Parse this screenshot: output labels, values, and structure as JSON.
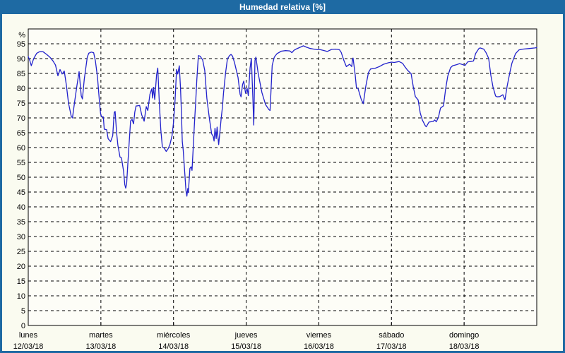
{
  "window": {
    "title": "Humedad relativa [%]"
  },
  "colors": {
    "frame": "#1E6AA3",
    "title_text": "#FFFFFF",
    "background": "#FAFBF0",
    "plot_background": "#FDFDF7",
    "grid": "#000000",
    "axis": "#000000",
    "text": "#000000",
    "line": "#2222CC"
  },
  "chart_data": {
    "type": "line",
    "title": "Humedad relativa [%]",
    "unit_label": "%",
    "ylabel": "%",
    "ylim": [
      0,
      100
    ],
    "yticks": [
      0,
      5,
      10,
      15,
      20,
      25,
      30,
      35,
      40,
      45,
      50,
      55,
      60,
      65,
      70,
      75,
      80,
      85,
      90,
      95
    ],
    "xlim_hours": [
      0,
      168
    ],
    "grid": true,
    "legend": "none",
    "x_axis_days": [
      {
        "name": "lunes",
        "date": "12/03/18"
      },
      {
        "name": "martes",
        "date": "13/03/18"
      },
      {
        "name": "miércoles",
        "date": "14/03/18"
      },
      {
        "name": "jueves",
        "date": "15/03/18"
      },
      {
        "name": "viernes",
        "date": "16/03/18"
      },
      {
        "name": "sábado",
        "date": "17/03/18"
      },
      {
        "name": "domingo",
        "date": "18/03/18"
      }
    ],
    "series": [
      {
        "name": "Humedad relativa",
        "color": "#2222CC",
        "points_hours_pct": [
          [
            0,
            90.7
          ],
          [
            0.5,
            89.4
          ],
          [
            1,
            87.6
          ],
          [
            1.8,
            90
          ],
          [
            2.8,
            91.8
          ],
          [
            3.7,
            92.3
          ],
          [
            4.9,
            92.3
          ],
          [
            6.1,
            91.4
          ],
          [
            7.2,
            90.4
          ],
          [
            8.2,
            89.2
          ],
          [
            9,
            87.8
          ],
          [
            9.8,
            84.2
          ],
          [
            10.5,
            86.3
          ],
          [
            11.2,
            84.8
          ],
          [
            11.9,
            85.8
          ],
          [
            12.6,
            81
          ],
          [
            13.3,
            75
          ],
          [
            14.2,
            70.5
          ],
          [
            14.6,
            70
          ],
          [
            15.4,
            76
          ],
          [
            16.1,
            81
          ],
          [
            16.8,
            85.6
          ],
          [
            17.5,
            77.5
          ],
          [
            17.9,
            76.4
          ],
          [
            18.5,
            83
          ],
          [
            18.9,
            86
          ],
          [
            19.5,
            90.5
          ],
          [
            20,
            91.8
          ],
          [
            20.8,
            92.2
          ],
          [
            21.6,
            92
          ],
          [
            22.2,
            89.2
          ],
          [
            22.9,
            83.6
          ],
          [
            23.5,
            75.8
          ],
          [
            23.9,
            71.5
          ],
          [
            24.2,
            70.4
          ],
          [
            24.8,
            70.3
          ],
          [
            25.1,
            66.2
          ],
          [
            25.9,
            66
          ],
          [
            26.4,
            63
          ],
          [
            27.2,
            62
          ],
          [
            27.9,
            64
          ],
          [
            28.4,
            71.8
          ],
          [
            28.7,
            72.2
          ],
          [
            29.2,
            65
          ],
          [
            29.6,
            60.8
          ],
          [
            30.3,
            56.8
          ],
          [
            30.8,
            56.5
          ],
          [
            31.5,
            52
          ],
          [
            31.9,
            47.5
          ],
          [
            32.2,
            46.3
          ],
          [
            32.5,
            47.8
          ],
          [
            33.1,
            58
          ],
          [
            33.8,
            69
          ],
          [
            34.3,
            69.5
          ],
          [
            34.8,
            68
          ],
          [
            35.2,
            72
          ],
          [
            35.6,
            74
          ],
          [
            36.8,
            74.2
          ],
          [
            37.5,
            71
          ],
          [
            38.3,
            68.9
          ],
          [
            39,
            73.8
          ],
          [
            39.5,
            72.5
          ],
          [
            40.2,
            78
          ],
          [
            40.8,
            79.8
          ],
          [
            41.1,
            76.7
          ],
          [
            41.4,
            80.3
          ],
          [
            41.8,
            76.2
          ],
          [
            42.4,
            84.5
          ],
          [
            42.8,
            86.8
          ],
          [
            43.3,
            75
          ],
          [
            43.8,
            66
          ],
          [
            44.3,
            60.2
          ],
          [
            44.9,
            59.8
          ],
          [
            45.6,
            58.7
          ],
          [
            46.2,
            59.6
          ],
          [
            46.8,
            61
          ],
          [
            47.5,
            64
          ],
          [
            48,
            68.5
          ],
          [
            48.5,
            76
          ],
          [
            49,
            86.3
          ],
          [
            49.4,
            84.8
          ],
          [
            49.9,
            87.6
          ],
          [
            50.3,
            80
          ],
          [
            50.6,
            71.8
          ],
          [
            50.9,
            62
          ],
          [
            51.2,
            59.2
          ],
          [
            51.7,
            51.5
          ],
          [
            52.1,
            45.5
          ],
          [
            52.4,
            43.6
          ],
          [
            52.7,
            46.2
          ],
          [
            52.9,
            44.8
          ],
          [
            53.4,
            53
          ],
          [
            53.8,
            53.5
          ],
          [
            54.1,
            52.3
          ],
          [
            54.5,
            60
          ],
          [
            54.9,
            68
          ],
          [
            55.3,
            75
          ],
          [
            55.7,
            82.9
          ],
          [
            56.2,
            91
          ],
          [
            56.8,
            90.8
          ],
          [
            57.6,
            89.6
          ],
          [
            58.3,
            86
          ],
          [
            59,
            76.6
          ],
          [
            59.9,
            69.4
          ],
          [
            60.6,
            64.6
          ],
          [
            61.1,
            63.8
          ],
          [
            61.4,
            62.2
          ],
          [
            61.7,
            66.5
          ],
          [
            62.1,
            63
          ],
          [
            62.4,
            66.9
          ],
          [
            62.9,
            61
          ],
          [
            63.4,
            66
          ],
          [
            63.7,
            69.4
          ],
          [
            64.2,
            74
          ],
          [
            64.5,
            78.2
          ],
          [
            65.2,
            85.2
          ],
          [
            65.8,
            89.9
          ],
          [
            66.5,
            91
          ],
          [
            67,
            91.4
          ],
          [
            67.5,
            90.8
          ],
          [
            68.2,
            88.4
          ],
          [
            69.3,
            83.7
          ],
          [
            70,
            77.9
          ],
          [
            70.3,
            77.1
          ],
          [
            70.8,
            81.2
          ],
          [
            71.2,
            82.4
          ],
          [
            71.8,
            78.3
          ],
          [
            72.3,
            80
          ],
          [
            72.7,
            77.5
          ],
          [
            73.3,
            86.9
          ],
          [
            73.7,
            90.1
          ],
          [
            74.2,
            76.9
          ],
          [
            74.5,
            67.6
          ],
          [
            74.9,
            89.3
          ],
          [
            75.2,
            90.5
          ],
          [
            76,
            84.8
          ],
          [
            77.2,
            78.5
          ],
          [
            78.4,
            74.5
          ],
          [
            79.5,
            72.8
          ],
          [
            79.9,
            72.5
          ],
          [
            80.6,
            87.7
          ],
          [
            81.3,
            90.5
          ],
          [
            82.2,
            91.7
          ],
          [
            83.6,
            92.5
          ],
          [
            85,
            92.7
          ],
          [
            86.4,
            92.6
          ],
          [
            87.1,
            92
          ],
          [
            87.8,
            92.8
          ],
          [
            88.7,
            93.3
          ],
          [
            90,
            93.9
          ],
          [
            90.9,
            94.3
          ],
          [
            92,
            93.8
          ],
          [
            93.2,
            93.4
          ],
          [
            94.4,
            93.2
          ],
          [
            95.6,
            93
          ],
          [
            96.5,
            93
          ],
          [
            97.4,
            92.8
          ],
          [
            98.8,
            92.4
          ],
          [
            100.2,
            93.1
          ],
          [
            101.6,
            93.2
          ],
          [
            102.8,
            93
          ],
          [
            103.4,
            92.1
          ],
          [
            104.3,
            89.3
          ],
          [
            105.1,
            87.3
          ],
          [
            106.2,
            88.1
          ],
          [
            106.9,
            87.3
          ],
          [
            107.1,
            89.7
          ],
          [
            107.3,
            90.2
          ],
          [
            108,
            84.6
          ],
          [
            108.4,
            80.3
          ],
          [
            109,
            79.8
          ],
          [
            110,
            76.3
          ],
          [
            110.7,
            74.8
          ],
          [
            111.5,
            80.6
          ],
          [
            112.4,
            85.3
          ],
          [
            113.1,
            86.5
          ],
          [
            114.5,
            86.7
          ],
          [
            116,
            87.3
          ],
          [
            117.4,
            88.1
          ],
          [
            119,
            88.6
          ],
          [
            120,
            88.8
          ],
          [
            120.9,
            88.7
          ],
          [
            122.5,
            89
          ],
          [
            123.7,
            88.4
          ],
          [
            124.4,
            87.3
          ],
          [
            125.3,
            86.1
          ],
          [
            126.5,
            84.9
          ],
          [
            127.2,
            80.6
          ],
          [
            127.9,
            77.2
          ],
          [
            128.8,
            76.1
          ],
          [
            129.5,
            71.7
          ],
          [
            130.2,
            69.3
          ],
          [
            131.2,
            67.3
          ],
          [
            131.5,
            67
          ],
          [
            132.4,
            68.6
          ],
          [
            133.8,
            68.8
          ],
          [
            134.3,
            69.3
          ],
          [
            134.8,
            68.7
          ],
          [
            135.5,
            70.1
          ],
          [
            136.2,
            73.3
          ],
          [
            137.2,
            74.1
          ],
          [
            137.9,
            79.8
          ],
          [
            138.6,
            84.1
          ],
          [
            139.5,
            86.9
          ],
          [
            140.2,
            87.6
          ],
          [
            141.4,
            87.9
          ],
          [
            142.5,
            88.3
          ],
          [
            143.7,
            87.9
          ],
          [
            144.3,
            87.7
          ],
          [
            145.2,
            88.9
          ],
          [
            146.1,
            89
          ],
          [
            147.1,
            89.2
          ],
          [
            147.8,
            91.7
          ],
          [
            148.9,
            93.4
          ],
          [
            149.3,
            93.6
          ],
          [
            150.5,
            93.2
          ],
          [
            151.2,
            92.1
          ],
          [
            152.1,
            90.1
          ],
          [
            152.8,
            84.5
          ],
          [
            153.5,
            80.6
          ],
          [
            154.4,
            77.4
          ],
          [
            154.9,
            77.1
          ],
          [
            155.8,
            77.2
          ],
          [
            156.8,
            77.8
          ],
          [
            157.5,
            76.1
          ],
          [
            158.2,
            80.6
          ],
          [
            159.1,
            85.3
          ],
          [
            159.8,
            88.5
          ],
          [
            161,
            91.7
          ],
          [
            162.1,
            92.9
          ],
          [
            163.3,
            93.2
          ],
          [
            165.6,
            93.4
          ],
          [
            167.4,
            93.6
          ],
          [
            168,
            93.7
          ]
        ]
      }
    ]
  }
}
